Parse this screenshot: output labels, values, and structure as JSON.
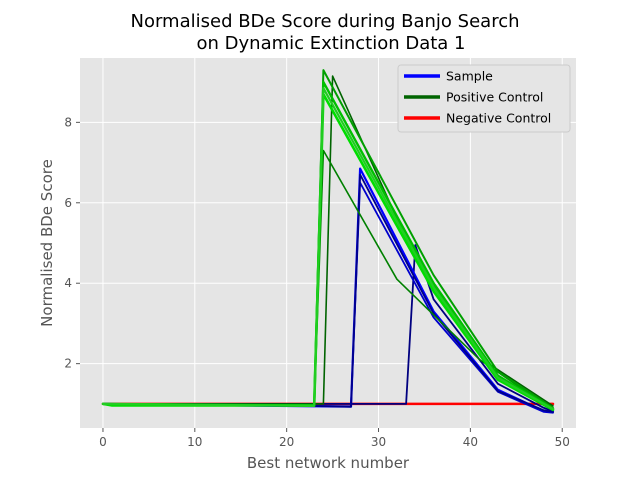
{
  "chart_data": {
    "type": "line",
    "title_lines": [
      "Normalised BDe Score during Banjo Search",
      "on Dynamic Extinction Data 1"
    ],
    "xlabel": "Best network number",
    "ylabel": "Normalised BDe Score",
    "xlim": [
      -2.5,
      51.5
    ],
    "ylim": [
      0.4,
      9.6
    ],
    "xticks": [
      0,
      10,
      20,
      30,
      40,
      50
    ],
    "yticks": [
      2,
      4,
      6,
      8
    ],
    "grid": true,
    "legend_position": "top-right",
    "legend": [
      {
        "label": "Sample",
        "color": "#0000ff"
      },
      {
        "label": "Positive Control",
        "color": "#006400"
      },
      {
        "label": "Negative Control",
        "color": "#ff0000"
      }
    ],
    "series": [
      {
        "group": "Negative Control",
        "color": "#ff0000",
        "width": 2.5,
        "x": [
          0,
          49
        ],
        "y": [
          1.0,
          1.0
        ]
      },
      {
        "group": "Sample",
        "color": "#000080",
        "width": 1.8,
        "x": [
          0,
          33,
          34,
          36,
          43,
          48,
          49
        ],
        "y": [
          1.0,
          1.0,
          4.95,
          3.6,
          1.5,
          0.9,
          0.82
        ]
      },
      {
        "group": "Sample",
        "color": "#0000ff",
        "width": 2.2,
        "x": [
          0,
          27,
          28,
          36,
          43,
          48,
          49
        ],
        "y": [
          1.0,
          0.93,
          6.85,
          3.3,
          1.35,
          0.82,
          0.8
        ]
      },
      {
        "group": "Sample",
        "color": "#0000cd",
        "width": 1.8,
        "x": [
          0,
          27,
          28,
          36,
          43,
          48,
          49
        ],
        "y": [
          1.0,
          0.94,
          6.5,
          3.15,
          1.3,
          0.8,
          0.78
        ]
      },
      {
        "group": "Sample",
        "color": "#00008b",
        "width": 1.8,
        "x": [
          0,
          22,
          27,
          28,
          36,
          43,
          48,
          49
        ],
        "y": [
          1.0,
          0.95,
          0.93,
          6.7,
          3.25,
          1.32,
          0.84,
          0.8
        ]
      },
      {
        "group": "Positive Control",
        "color": "#006400",
        "width": 1.6,
        "x": [
          0,
          24,
          25,
          34,
          42,
          49
        ],
        "y": [
          1.0,
          1.0,
          9.15,
          4.6,
          2.0,
          0.95
        ]
      },
      {
        "group": "Positive Control",
        "color": "#008000",
        "width": 1.6,
        "x": [
          0,
          23,
          24,
          32,
          41,
          49
        ],
        "y": [
          1.0,
          0.97,
          7.3,
          4.1,
          2.1,
          0.85
        ]
      },
      {
        "group": "Positive Control",
        "color": "#00a000",
        "width": 2,
        "x": [
          0,
          23,
          24,
          36,
          43,
          49
        ],
        "y": [
          1.0,
          0.95,
          9.3,
          4.2,
          1.8,
          0.9
        ]
      },
      {
        "group": "Positive Control",
        "color": "#00c000",
        "width": 2.4,
        "x": [
          0,
          23,
          24,
          36,
          43,
          49
        ],
        "y": [
          1.0,
          0.96,
          9.0,
          4.0,
          1.7,
          0.88
        ]
      },
      {
        "group": "Positive Control",
        "color": "#00dd00",
        "width": 2.6,
        "x": [
          0,
          1,
          23,
          24,
          36,
          43,
          49
        ],
        "y": [
          1.0,
          0.96,
          0.96,
          8.7,
          3.8,
          1.6,
          0.85
        ]
      },
      {
        "group": "Positive Control",
        "color": "#22cc22",
        "width": 2.2,
        "x": [
          0,
          23,
          24,
          36,
          43,
          49
        ],
        "y": [
          1.0,
          0.95,
          8.85,
          3.9,
          1.65,
          0.87
        ]
      }
    ]
  }
}
